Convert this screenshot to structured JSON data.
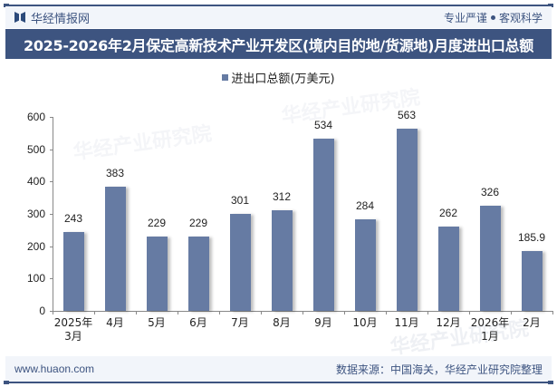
{
  "header": {
    "brand": "华经情报网",
    "slogan_left": "专业严谨",
    "slogan_right": "客观科学",
    "title": "2025-2026年2月保定高新技术产业开发区(境内目的地/货源地)月度进出口总额"
  },
  "legend": {
    "label": "进出口总额(万美元)"
  },
  "footer": {
    "website": "www.huaon.com",
    "source": "数据来源：中国海关，华经产业研究院整理"
  },
  "watermark": {
    "text": "华经产业研究院",
    "url": "www.huaon.com"
  },
  "colors": {
    "bar": "#667ba3",
    "brand": "#3d5480",
    "header_bg": "#f2f5fa"
  },
  "chart_data": {
    "type": "bar",
    "title": "2025-2026年2月保定高新技术产业开发区(境内目的地/货源地)月度进出口总额",
    "xlabel": "",
    "ylabel": "",
    "categories": [
      "2025年\n3月",
      "4月",
      "5月",
      "6月",
      "7月",
      "8月",
      "9月",
      "10月",
      "11月",
      "12月",
      "2026年\n1月",
      "2月"
    ],
    "series": [
      {
        "name": "进出口总额(万美元)",
        "values": [
          243,
          383,
          229,
          229,
          301,
          312,
          534,
          284,
          563,
          262,
          326,
          185.9
        ]
      }
    ],
    "data_labels": [
      "243",
      "383",
      "229",
      "229",
      "301",
      "312",
      "534",
      "284",
      "563",
      "262",
      "326",
      "185.9"
    ],
    "yticks": [
      0,
      100,
      200,
      300,
      400,
      500,
      600
    ],
    "ylim": [
      0,
      600
    ],
    "grid": false,
    "legend_position": "top"
  }
}
